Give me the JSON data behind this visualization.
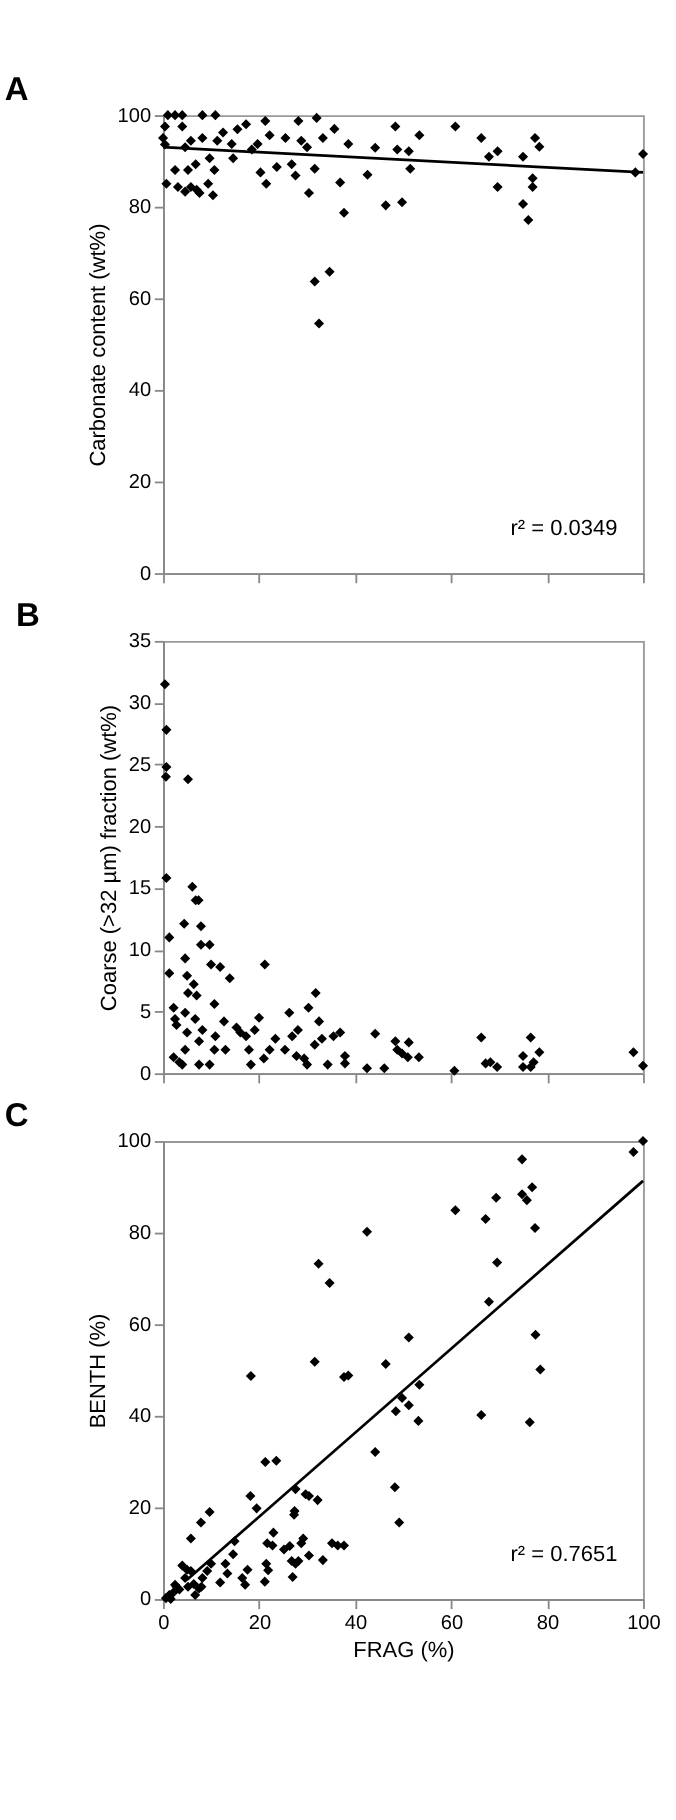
{
  "chart_data": [
    {
      "type": "scatter",
      "title": "A",
      "ylabel": "Carbonate content (wt%)",
      "xlim": [
        0,
        100
      ],
      "xticks": [
        {
          "value": 0,
          "label": null
        },
        {
          "value": 20,
          "label": null
        },
        {
          "value": 40,
          "label": null
        },
        {
          "value": 60,
          "label": null
        },
        {
          "value": 80,
          "label": null
        },
        {
          "value": 100,
          "label": null
        }
      ],
      "ylim": [
        0,
        100
      ],
      "yticks": [
        0,
        20,
        40,
        60,
        80,
        100
      ],
      "tick_labels": "y",
      "grid": false,
      "annotations": [
        "r² = 0.0349"
      ],
      "series": [
        {
          "marker": "diamond",
          "color": "#000000",
          "x": [
            0,
            0.4,
            1,
            0.4,
            0.7,
            2.5,
            2.5,
            3.1,
            4,
            4,
            4.6,
            4.6,
            5.2,
            5.8,
            5.8,
            6.8,
            7,
            7.6,
            8.2,
            8.2,
            9.4,
            9.7,
            10.4,
            10.7,
            10.9,
            11.3,
            12.5,
            14.3,
            14.6,
            15.5,
            17.3,
            18.5,
            19.7,
            20.3,
            21.3,
            21.5,
            22.2,
            23.7,
            25.5,
            26.8,
            27.6,
            28.2,
            28.8,
            30,
            30.4,
            31.6,
            32,
            33.3,
            35.7,
            36.9,
            37.7,
            38.6,
            31.6,
            34.7,
            32.5,
            42.6,
            44.2,
            46.4,
            48.4,
            48.8,
            49.8,
            51.2,
            51.5,
            53.4,
            60.9,
            66.3,
            67.9,
            69.7,
            69.7,
            75,
            75,
            76.1,
            77,
            77,
            77.5,
            78.4,
            98.4,
            100
          ],
          "values": [
            95,
            97.5,
            100,
            93.6,
            85,
            100,
            88,
            84.3,
            100,
            97.5,
            93,
            83.3,
            88,
            94.4,
            84.3,
            89.3,
            83.7,
            83,
            100,
            95,
            85,
            90.6,
            82.5,
            88,
            100,
            94.4,
            96.2,
            93.7,
            90.6,
            96.9,
            98,
            92.5,
            93.7,
            87.5,
            98.7,
            85,
            95.6,
            88.7,
            95,
            89.3,
            86.8,
            98.7,
            94.4,
            93,
            83,
            88.3,
            99.4,
            95,
            97,
            85.3,
            78.7,
            93.7,
            63.7,
            65.8,
            54.5,
            87,
            92.9,
            80.3,
            97.5,
            92.5,
            81,
            92.1,
            88.3,
            95.6,
            97.5,
            95,
            90.9,
            84.3,
            92.1,
            90.9,
            80.6,
            77.1,
            86.2,
            84.3,
            95,
            93.1,
            87.5,
            91.5
          ]
        },
        {
          "type": "line",
          "marker": "none",
          "color": "#000000",
          "x": [
            0,
            100
          ],
          "values": [
            93,
            87.5
          ]
        }
      ]
    },
    {
      "type": "scatter",
      "title": "B",
      "ylabel": "Coarse (>32 µm) fraction (wt%)",
      "xlim": [
        0,
        100
      ],
      "xticks": [
        {
          "value": 0,
          "label": null
        },
        {
          "value": 20,
          "label": null
        },
        {
          "value": 40,
          "label": null
        },
        {
          "value": 60,
          "label": null
        },
        {
          "value": 80,
          "label": null
        },
        {
          "value": 100,
          "label": null
        }
      ],
      "ylim": [
        0,
        35
      ],
      "yticks": [
        0,
        5,
        10,
        15,
        20,
        25,
        30,
        35
      ],
      "tick_labels": "y",
      "grid": false,
      "series": [
        {
          "marker": "diamond",
          "color": "#000000",
          "x": [
            0.4,
            0.7,
            0.7,
            0.6,
            0.7,
            1.3,
            1.3,
            2.2,
            2.5,
            2.8,
            2.2,
            3.4,
            4,
            5.2,
            4.4,
            4.6,
            5,
            5.2,
            4.6,
            5,
            4.6,
            6.1,
            6.8,
            7.4,
            7.9,
            7.9,
            9.7,
            6.4,
            7,
            6.7,
            7.5,
            8.2,
            7.5,
            9.7,
            10,
            10.7,
            10.9,
            10.7,
            11.9,
            12.7,
            13.9,
            13,
            15.3,
            16.1,
            17.3,
            17.9,
            18.3,
            19.1,
            20,
            21.2,
            21,
            22.2,
            23.4,
            25.4,
            26.3,
            26.9,
            28.1,
            27.8,
            29.4,
            30,
            30.3,
            31.8,
            32.5,
            31.6,
            33.1,
            34.3,
            35.5,
            36.9,
            37.9,
            37.9,
            42.5,
            44.2,
            46.1,
            48.4,
            48.8,
            49.8,
            51.2,
            51,
            53.3,
            60.7,
            66.3,
            67.2,
            68.2,
            69.6,
            75,
            75,
            76.6,
            76.6,
            77.2,
            78.4,
            98,
            100
          ],
          "values": [
            31.5,
            27.8,
            24.8,
            24,
            15.8,
            11,
            8.1,
            5.3,
            4.4,
            3.9,
            1.3,
            0.9,
            0.7,
            23.8,
            12.1,
            9.3,
            7.9,
            6.5,
            4.9,
            3.3,
            1.9,
            15.1,
            14,
            14,
            11.9,
            10.4,
            10.4,
            7.2,
            6.3,
            4.4,
            2.6,
            3.5,
            0.7,
            0.7,
            8.8,
            5.6,
            3,
            1.9,
            8.6,
            4.2,
            7.7,
            1.9,
            3.7,
            3.3,
            3,
            1.9,
            0.7,
            3.5,
            4.5,
            8.8,
            1.2,
            1.9,
            2.8,
            1.9,
            4.9,
            3,
            3.5,
            1.4,
            1.2,
            0.7,
            5.3,
            6.5,
            4.2,
            2.3,
            2.8,
            0.7,
            3,
            3.3,
            1.4,
            0.8,
            0.4,
            3.2,
            0.4,
            2.6,
            1.9,
            1.6,
            2.5,
            1.3,
            1.3,
            0.2,
            2.9,
            0.8,
            0.9,
            0.5,
            1.4,
            0.5,
            2.9,
            0.5,
            0.9,
            1.7,
            1.7,
            0.6
          ]
        }
      ]
    },
    {
      "type": "scatter",
      "title": "C",
      "xlabel": "FRAG (%)",
      "ylabel": "BENTH (%)",
      "xlim": [
        0,
        100
      ],
      "xticks": [
        0,
        20,
        40,
        60,
        80,
        100
      ],
      "ylim": [
        0,
        100
      ],
      "yticks": [
        0,
        20,
        40,
        60,
        80,
        100
      ],
      "grid": false,
      "annotations": [
        "r² = 0.7651"
      ],
      "series": [
        {
          "marker": "diamond",
          "color": "#000000",
          "x": [
            74.8,
            98,
            100,
            60.9,
            67.2,
            69.4,
            74.8,
            75.8,
            76.9,
            77.5,
            42.5,
            32.4,
            34.7,
            69.6,
            67.9,
            51.2,
            77.6,
            78.6,
            31.6,
            46.4,
            53.4,
            66.3,
            76.4,
            49.8,
            48.5,
            51.2,
            53.2,
            37.7,
            38.6,
            18.3,
            44.2,
            48.3,
            49.2,
            21.3,
            23.6,
            27.6,
            29.7,
            30.4,
            32.2,
            18.2,
            19.5,
            27.4,
            27.3,
            9.7,
            7.9,
            5.8,
            14.9,
            23,
            21.7,
            22.8,
            29.2,
            28.8,
            35.2,
            36.4,
            37.7,
            33.3,
            30.4,
            28.2,
            26.8,
            25.2,
            26.4,
            27.6,
            27,
            21.5,
            21.9,
            21.2,
            17.6,
            17.1,
            16.5,
            14.6,
            13,
            13.4,
            11.9,
            10,
            9.2,
            8.2,
            7.5,
            6.7,
            5.2,
            4.6,
            4,
            5,
            5.8,
            6.4,
            3.4,
            2.5,
            2.2,
            1.3,
            0.6,
            1.6,
            2.8,
            8
          ],
          "values": [
            96,
            97.6,
            100,
            84.9,
            83,
            87.6,
            88.4,
            87.1,
            89.9,
            81,
            80.2,
            73.2,
            69,
            73.5,
            64.9,
            57.1,
            57.7,
            50.1,
            51.8,
            51.3,
            46.8,
            40.2,
            38.6,
            43.9,
            41,
            42.3,
            38.9,
            48.5,
            48.8,
            48.7,
            32.1,
            24.4,
            16.7,
            29.9,
            30.2,
            24,
            22.9,
            22.5,
            21.6,
            22.5,
            19.8,
            19.2,
            18.4,
            19,
            16.7,
            13.2,
            12.6,
            14.5,
            12.2,
            11.7,
            13.2,
            12.2,
            12.2,
            11.7,
            11.7,
            8.5,
            9.5,
            8.3,
            8.3,
            10.8,
            11.6,
            7.7,
            4.8,
            7.7,
            6.3,
            3.8,
            6.4,
            3.1,
            4.6,
            9.8,
            7.7,
            5.6,
            3.6,
            7.7,
            6.1,
            4.6,
            2.3,
            0.9,
            2.7,
            4.6,
            7.3,
            6.4,
            6.1,
            3.3,
            2.1,
            3.1,
            1.5,
            0.9,
            0.2,
            0,
            2.7,
            2.7
          ]
        },
        {
          "type": "line",
          "marker": "none",
          "color": "#000000",
          "x": [
            5,
            100
          ],
          "values": [
            4.2,
            91.3
          ]
        }
      ]
    }
  ]
}
